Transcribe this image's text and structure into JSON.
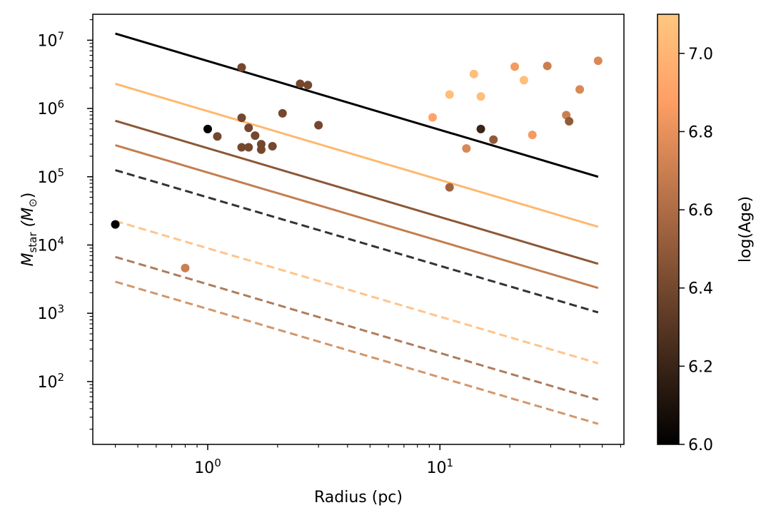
{
  "chart_data": {
    "type": "scatter",
    "xlabel": "Radius (pc)",
    "ylabel_main": "M",
    "ylabel_sub": "star",
    "ylabel_unit_open": " (M",
    "ylabel_unit_sub": "⊙",
    "ylabel_unit_close": ")",
    "xscale": "log",
    "yscale": "log",
    "xlim": [
      0.32,
      62
    ],
    "ylim": [
      12,
      24000000
    ],
    "x_ticks": [
      {
        "value": 1,
        "base": "10",
        "exp": "0"
      },
      {
        "value": 10,
        "base": "10",
        "exp": "1"
      }
    ],
    "y_ticks": [
      {
        "value": 100,
        "base": "10",
        "exp": "2"
      },
      {
        "value": 1000,
        "base": "10",
        "exp": "3"
      },
      {
        "value": 10000,
        "base": "10",
        "exp": "4"
      },
      {
        "value": 100000,
        "base": "10",
        "exp": "5"
      },
      {
        "value": 1000000,
        "base": "10",
        "exp": "6"
      },
      {
        "value": 10000000,
        "base": "10",
        "exp": "7"
      }
    ],
    "colorbar": {
      "label": "log(Age)",
      "min": 6.0,
      "max": 7.1,
      "ticks": [
        "6.0",
        "6.2",
        "6.4",
        "6.6",
        "6.8",
        "7.0"
      ],
      "colormap": "copper"
    },
    "lines": [
      {
        "style": "solid",
        "color": "#000000",
        "x": [
          0.4,
          48
        ],
        "y": [
          12500000,
          100000
        ]
      },
      {
        "style": "solid",
        "color": "#ffb870",
        "x": [
          0.4,
          48
        ],
        "y": [
          2300000,
          18500
        ]
      },
      {
        "style": "solid",
        "color": "#8b5836",
        "x": [
          0.4,
          48
        ],
        "y": [
          660000,
          5300
        ]
      },
      {
        "style": "solid",
        "color": "#c47d50",
        "x": [
          0.4,
          48
        ],
        "y": [
          290000,
          2350
        ]
      },
      {
        "style": "dashed",
        "color": "#333333",
        "x": [
          0.4,
          48
        ],
        "y": [
          125000,
          1030
        ]
      },
      {
        "style": "dashed",
        "color": "#ffc48c",
        "x": [
          0.4,
          48
        ],
        "y": [
          22500,
          185
        ]
      },
      {
        "style": "dashed",
        "color": "#ae7c5c",
        "x": [
          0.4,
          48
        ],
        "y": [
          6700,
          54
        ]
      },
      {
        "style": "dashed",
        "color": "#d3966c",
        "x": [
          0.4,
          48
        ],
        "y": [
          2900,
          24
        ]
      }
    ],
    "points": [
      {
        "x": 0.4,
        "y": 20000,
        "age": 6.0
      },
      {
        "x": 0.8,
        "y": 4600,
        "age": 6.7
      },
      {
        "x": 1.0,
        "y": 500000,
        "age": 6.0
      },
      {
        "x": 1.1,
        "y": 390000,
        "age": 6.4
      },
      {
        "x": 1.4,
        "y": 4000000,
        "age": 6.4
      },
      {
        "x": 1.4,
        "y": 730000,
        "age": 6.4
      },
      {
        "x": 1.4,
        "y": 270000,
        "age": 6.4
      },
      {
        "x": 1.5,
        "y": 520000,
        "age": 6.4
      },
      {
        "x": 1.5,
        "y": 270000,
        "age": 6.4
      },
      {
        "x": 1.6,
        "y": 400000,
        "age": 6.4
      },
      {
        "x": 1.7,
        "y": 300000,
        "age": 6.4
      },
      {
        "x": 1.7,
        "y": 250000,
        "age": 6.4
      },
      {
        "x": 1.9,
        "y": 280000,
        "age": 6.4
      },
      {
        "x": 2.1,
        "y": 850000,
        "age": 6.4
      },
      {
        "x": 2.5,
        "y": 2300000,
        "age": 6.4
      },
      {
        "x": 2.7,
        "y": 2200000,
        "age": 6.4
      },
      {
        "x": 3.0,
        "y": 570000,
        "age": 6.4
      },
      {
        "x": 9.3,
        "y": 740000,
        "age": 6.9
      },
      {
        "x": 11.0,
        "y": 1600000,
        "age": 7.05
      },
      {
        "x": 11.0,
        "y": 70000,
        "age": 6.55
      },
      {
        "x": 13.0,
        "y": 260000,
        "age": 6.75
      },
      {
        "x": 14.0,
        "y": 3200000,
        "age": 7.05
      },
      {
        "x": 15.0,
        "y": 1500000,
        "age": 7.05
      },
      {
        "x": 15.0,
        "y": 500000,
        "age": 6.2
      },
      {
        "x": 17.0,
        "y": 350000,
        "age": 6.5
      },
      {
        "x": 21.0,
        "y": 4100000,
        "age": 6.85
      },
      {
        "x": 23.0,
        "y": 2600000,
        "age": 7.05
      },
      {
        "x": 25.0,
        "y": 410000,
        "age": 6.85
      },
      {
        "x": 29.0,
        "y": 4200000,
        "age": 6.7
      },
      {
        "x": 35.0,
        "y": 800000,
        "age": 6.7
      },
      {
        "x": 36.0,
        "y": 650000,
        "age": 6.5
      },
      {
        "x": 40.0,
        "y": 1900000,
        "age": 6.75
      },
      {
        "x": 48.0,
        "y": 5000000,
        "age": 6.75
      }
    ]
  }
}
